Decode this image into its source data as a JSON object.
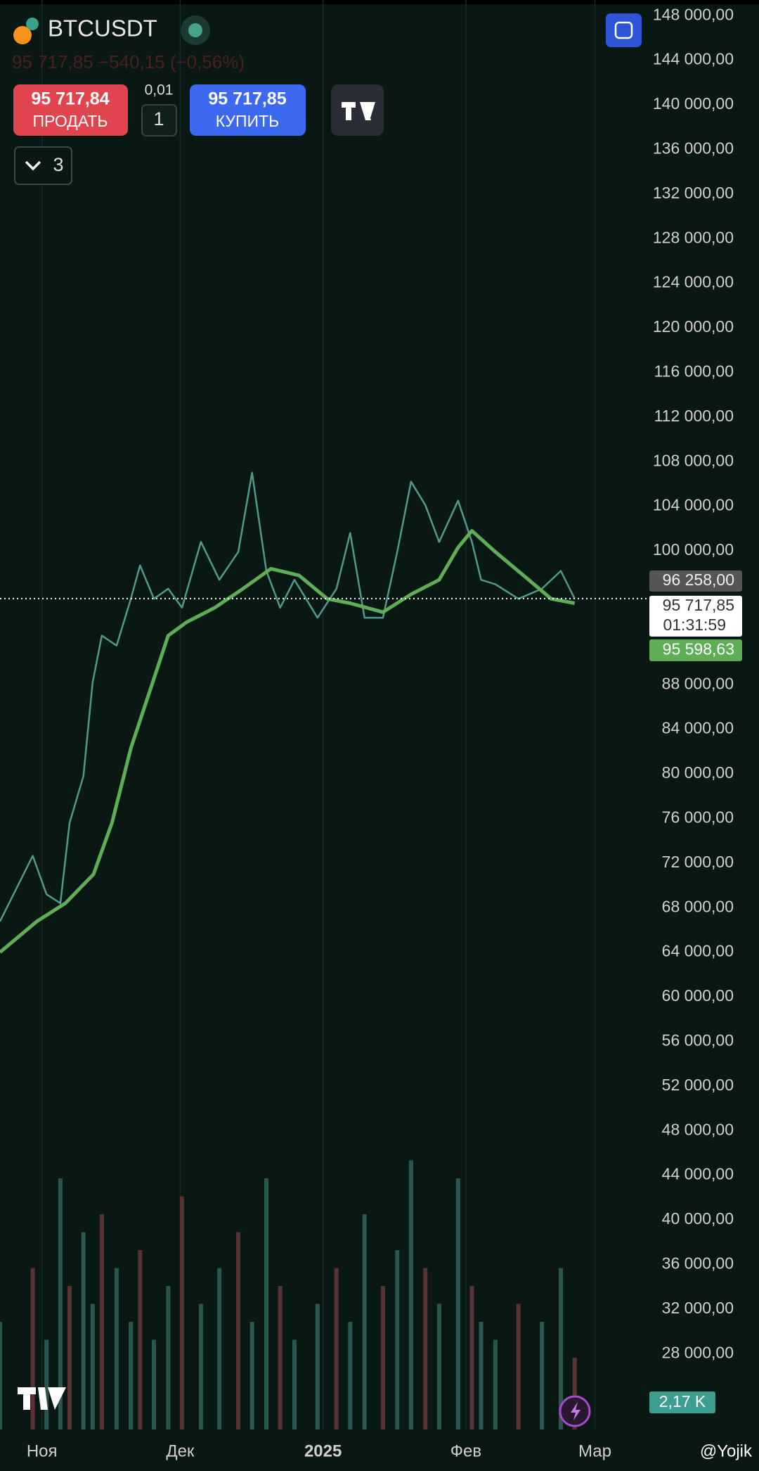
{
  "header": {
    "symbol": "BTCUSDT",
    "quote_line": "95 717,85  −540,15 (−0,56%)",
    "sell_price": "95 717,84",
    "sell_label": "ПРОДАТЬ",
    "qty_step": "0,01",
    "qty": "1",
    "buy_price": "95 717,85",
    "buy_label": "КУПИТЬ",
    "indicators": "3"
  },
  "chart_data": {
    "type": "line",
    "ylim": [
      21200,
      149400
    ],
    "yticks": [
      {
        "value": 148000,
        "label": "148 000,00"
      },
      {
        "value": 144000,
        "label": "144 000,00"
      },
      {
        "value": 140000,
        "label": "140 000,00"
      },
      {
        "value": 136000,
        "label": "136 000,00"
      },
      {
        "value": 132000,
        "label": "132 000,00"
      },
      {
        "value": 128000,
        "label": "128 000,00"
      },
      {
        "value": 124000,
        "label": "124 000,00"
      },
      {
        "value": 120000,
        "label": "120 000,00"
      },
      {
        "value": 116000,
        "label": "116 000,00"
      },
      {
        "value": 112000,
        "label": "112 000,00"
      },
      {
        "value": 108000,
        "label": "108 000,00"
      },
      {
        "value": 104000,
        "label": "104 000,00"
      },
      {
        "value": 100000,
        "label": "100 000,00"
      },
      {
        "value": 88000,
        "label": "88 000,00"
      },
      {
        "value": 84000,
        "label": "84 000,00"
      },
      {
        "value": 80000,
        "label": "80 000,00"
      },
      {
        "value": 76000,
        "label": "76 000,00"
      },
      {
        "value": 72000,
        "label": "72 000,00"
      },
      {
        "value": 68000,
        "label": "68 000,00"
      },
      {
        "value": 64000,
        "label": "64 000,00"
      },
      {
        "value": 60000,
        "label": "60 000,00"
      },
      {
        "value": 56000,
        "label": "56 000,00"
      },
      {
        "value": 52000,
        "label": "52 000,00"
      },
      {
        "value": 48000,
        "label": "48 000,00"
      },
      {
        "value": 44000,
        "label": "44 000,00"
      },
      {
        "value": 40000,
        "label": "40 000,00"
      },
      {
        "value": 36000,
        "label": "36 000,00"
      },
      {
        "value": 32000,
        "label": "32 000,00"
      },
      {
        "value": 28000,
        "label": "28 000,00"
      }
    ],
    "xlim": [
      -9.1,
      130.9
    ],
    "xticks": [
      {
        "value": 0,
        "label": "Ноя"
      },
      {
        "value": 30,
        "label": "Дек"
      },
      {
        "value": 61,
        "label": "2025"
      },
      {
        "value": 92,
        "label": "Фев"
      },
      {
        "value": 120,
        "label": "Мар"
      }
    ],
    "series": [
      {
        "color": "#4f9a8a",
        "x": [
          -9.1,
          -2,
          1,
          4,
          6,
          9,
          11,
          13,
          16.2,
          19.3,
          21.3,
          24.3,
          27.4,
          30.4,
          34.5,
          38.5,
          42.6,
          45.6,
          48.7,
          51.7,
          54.8,
          59.8,
          63.9,
          66.9,
          70,
          74,
          77.1,
          80.1,
          83.2,
          86.2,
          90.3,
          93.3,
          95.3,
          98.4,
          103.4,
          108.5,
          112.6,
          115.6
        ],
        "values": [
          66770,
          72650,
          69200,
          68400,
          75600,
          79800,
          88200,
          92400,
          91500,
          95700,
          98700,
          95700,
          96600,
          94900,
          100800,
          97400,
          99900,
          107000,
          98200,
          94900,
          97400,
          94000,
          96600,
          101600,
          94000,
          94000,
          99900,
          106200,
          104100,
          100800,
          104500,
          100800,
          97400,
          97000,
          95700,
          96600,
          98200,
          95700
        ]
      },
      {
        "color": "#5fae57",
        "x": [
          -9.1,
          -1,
          5.1,
          11.2,
          15.2,
          19.3,
          23.3,
          27.4,
          31.4,
          37.5,
          43.6,
          49.7,
          55.8,
          61.9,
          66.9,
          74,
          80.1,
          86.2,
          90.3,
          93.3,
          98.4,
          104.5,
          110.5,
          115.6
        ],
        "values": [
          64000,
          66800,
          68400,
          71000,
          75600,
          82300,
          87300,
          92400,
          93600,
          94900,
          96600,
          98400,
          97800,
          95700,
          95300,
          94500,
          96100,
          97400,
          100300,
          101800,
          99900,
          97800,
          95700,
          95300
        ]
      }
    ],
    "volume": {
      "ylim": [
        0,
        20
      ],
      "values": [
        6,
        9,
        5,
        14,
        8,
        11,
        7,
        12,
        9,
        6,
        10,
        5,
        8,
        13,
        7,
        9,
        11,
        6,
        14,
        8,
        5,
        7,
        9,
        6,
        12,
        8,
        10,
        15,
        9,
        7,
        14,
        8,
        6,
        5,
        7,
        6,
        9,
        4
      ]
    },
    "price_labels": [
      {
        "value": 96258,
        "label": "96 258,00"
      },
      {
        "value": 95717.85,
        "label": "95 717,85"
      },
      {
        "value": 95598.63,
        "label": "95 598,63"
      }
    ],
    "countdown": "01:31:59",
    "volume_label": "2,17 K"
  },
  "watermark": "@Yojik"
}
